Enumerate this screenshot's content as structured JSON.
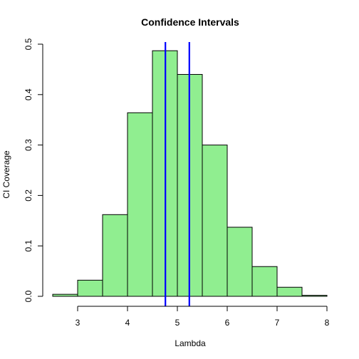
{
  "chart_data": {
    "type": "bar",
    "title": "Confidence Intervals",
    "xlabel": "Lambda",
    "ylabel": "CI Coverage",
    "bin_edges": [
      2.5,
      3.0,
      3.5,
      4.0,
      4.5,
      5.0,
      5.5,
      6.0,
      6.5,
      7.0,
      7.5,
      8.0
    ],
    "values": [
      0.004,
      0.032,
      0.162,
      0.364,
      0.487,
      0.44,
      0.3,
      0.137,
      0.059,
      0.018,
      0.002
    ],
    "xlim": [
      2.5,
      8
    ],
    "ylim": [
      0,
      0.5
    ],
    "xticks": [
      3,
      4,
      5,
      6,
      7,
      8
    ],
    "xtick_labels": [
      "3",
      "4",
      "5",
      "6",
      "7",
      "8"
    ],
    "yticks": [
      0,
      0.1,
      0.2,
      0.3,
      0.4,
      0.5
    ],
    "ytick_labels": [
      "0.0",
      "0.1",
      "0.2",
      "0.3",
      "0.4",
      "0.5"
    ],
    "vlines": [
      4.76,
      5.24
    ],
    "bar_color": "#90EE90",
    "bar_edge_color": "#000000",
    "vline_color": "#0000FF",
    "grid": false,
    "legend": "none"
  }
}
